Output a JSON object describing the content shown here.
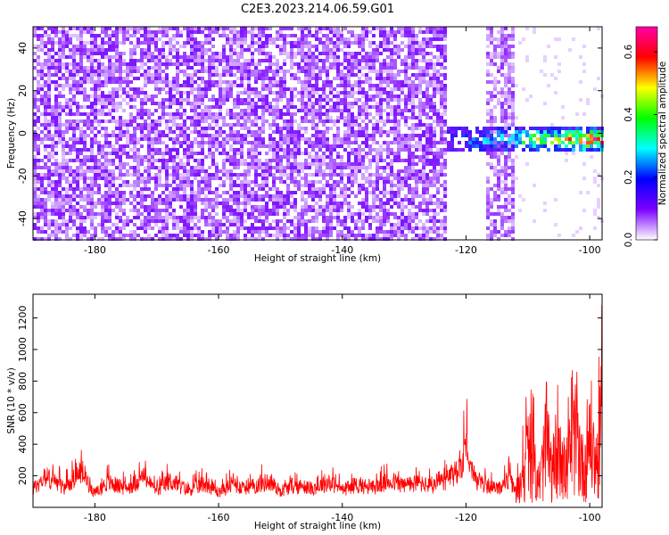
{
  "title": "C2E3.2023.214.06.59.G01",
  "chart_data": [
    {
      "type": "heatmap",
      "xlabel": "Height of straight line (km)",
      "ylabel": "Frequency (Hz)",
      "xlim": [
        -190,
        -98
      ],
      "ylim": [
        -50,
        50
      ],
      "x_ticks": [
        -180,
        -160,
        -140,
        -120,
        -100
      ],
      "y_ticks": [
        -40,
        -20,
        0,
        20,
        40
      ],
      "colorbar": {
        "label": "Normalized spectral amplitude",
        "range": [
          0,
          0.68
        ],
        "ticks": [
          0.0,
          0.2,
          0.4,
          0.6
        ],
        "tick_labels": [
          "0.0",
          "0.2",
          "0.4",
          "0.6"
        ],
        "colormap": [
          "#ffffff",
          "#7b00ff",
          "#0000ff",
          "#00ffff",
          "#00ff00",
          "#ffff00",
          "#ff0000",
          "#ff00aa"
        ]
      },
      "features": [
        {
          "description": "broadband noise speckle",
          "x_range": [
            -190,
            -123
          ],
          "level": 0.08
        },
        {
          "description": "noise strip",
          "x_range": [
            -117,
            -112
          ],
          "level": 0.07
        },
        {
          "description": "signal band near 0 Hz",
          "x_range": [
            -123,
            -98
          ],
          "y_center": -3,
          "peak_level": 0.68
        }
      ]
    },
    {
      "type": "line",
      "xlabel": "Height of straight line (km)",
      "ylabel": "SNR (10 * v/v)",
      "xlim": [
        -190,
        -98
      ],
      "ylim": [
        0,
        1350
      ],
      "x_ticks": [
        -180,
        -160,
        -140,
        -120,
        -100
      ],
      "y_ticks": [
        200,
        400,
        600,
        800,
        1000,
        1200
      ],
      "series": [
        {
          "color": "#ff0000",
          "x": [
            -190,
            -188,
            -185,
            -182,
            -180,
            -178,
            -175,
            -172,
            -170,
            -168,
            -165,
            -162,
            -160,
            -158,
            -155,
            -152,
            -150,
            -148,
            -145,
            -142,
            -140,
            -138,
            -135,
            -132,
            -130,
            -128,
            -125,
            -123,
            -121,
            -120,
            -119,
            -117,
            -115,
            -113,
            -112,
            -111,
            -110,
            -109,
            -108,
            -107,
            -106,
            -105,
            -104,
            -103,
            -102,
            -101,
            -100,
            -99,
            -98
          ],
          "y": [
            200,
            360,
            230,
            410,
            160,
            290,
            220,
            350,
            180,
            310,
            200,
            280,
            170,
            260,
            230,
            300,
            190,
            250,
            220,
            290,
            200,
            260,
            230,
            310,
            250,
            280,
            240,
            330,
            420,
            780,
            350,
            260,
            210,
            330,
            180,
            520,
            900,
            700,
            380,
            1080,
            430,
            1230,
            520,
            900,
            1100,
            560,
            1250,
            600,
            1340
          ]
        }
      ]
    }
  ]
}
